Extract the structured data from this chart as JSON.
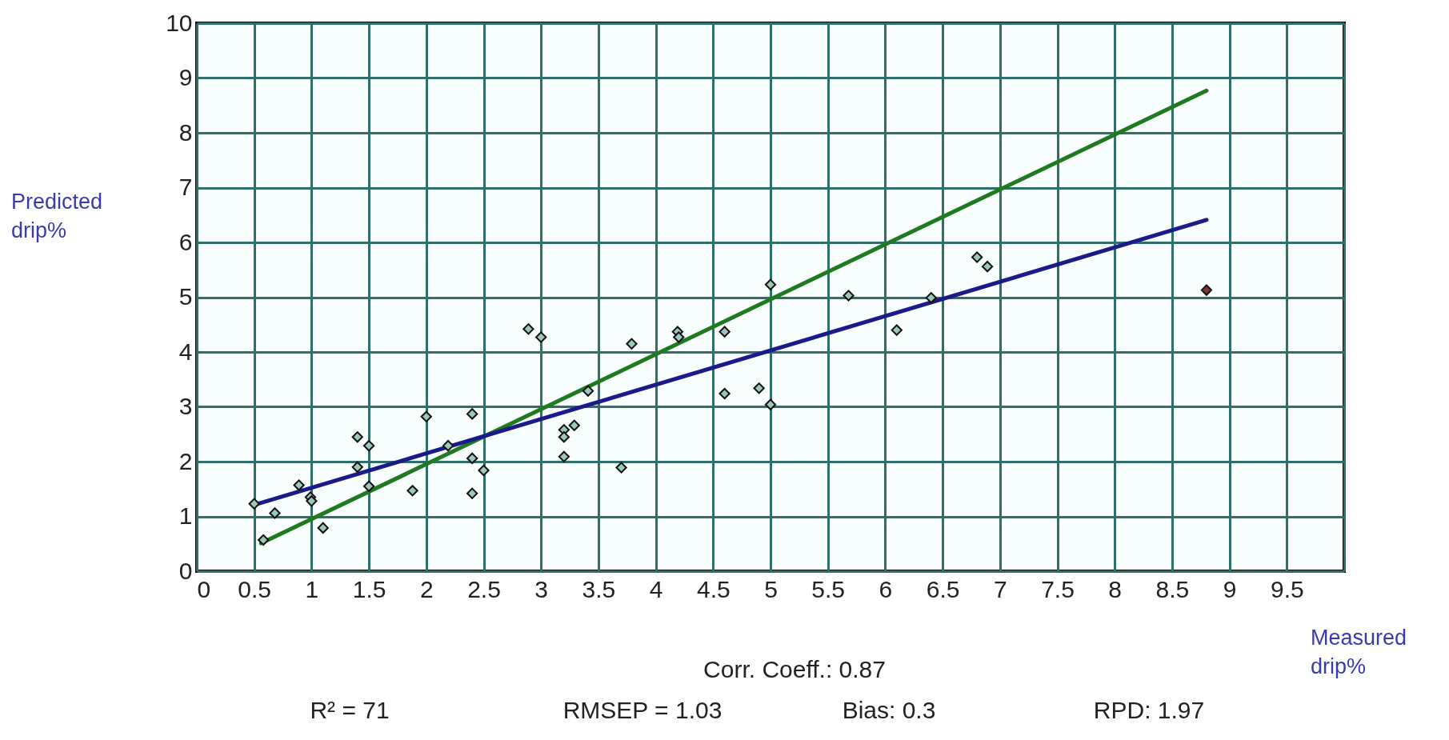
{
  "chart_data": {
    "type": "scatter",
    "xlabel": "Measured drip%",
    "ylabel": "Predicted drip%",
    "xlim": [
      0,
      10
    ],
    "ylim": [
      0,
      10
    ],
    "xticks": [
      0,
      0.5,
      1,
      1.5,
      2,
      2.5,
      3,
      3.5,
      4,
      4.5,
      5,
      5.5,
      6,
      6.5,
      7,
      7.5,
      8,
      8.5,
      9,
      9.5,
      {
        "value": 10,
        "label": null
      }
    ],
    "yticks": [
      0,
      1,
      2,
      3,
      4,
      5,
      6,
      7,
      8,
      9,
      10
    ],
    "grid": true,
    "marker": "diamond",
    "series": [
      {
        "type": "line",
        "line_style": "solid",
        "marker": "none",
        "color": "#1f7a1f",
        "x": [
          0.56,
          8.8
        ],
        "values": [
          0.51,
          8.77
        ]
      },
      {
        "type": "line",
        "line_style": "solid",
        "marker": "none",
        "color": "#1a1a8c",
        "x": [
          0.5,
          8.8
        ],
        "values": [
          1.21,
          6.41
        ]
      },
      {
        "color": "#9cc8b8",
        "x": [
          0.5,
          0.58,
          0.68,
          0.89,
          0.99,
          1.0,
          1.1,
          1.4,
          1.4,
          1.5,
          1.5,
          1.88,
          2.0,
          2.19,
          2.4,
          2.4,
          2.4,
          2.5,
          2.89,
          3.0,
          3.2,
          3.2,
          3.2,
          3.29,
          3.41,
          3.7,
          3.79,
          4.19,
          4.2,
          4.6,
          4.6,
          4.9,
          5.0,
          5.0,
          5.68,
          6.1,
          6.4,
          6.8,
          6.89
        ],
        "values": [
          1.23,
          0.57,
          1.06,
          1.57,
          1.35,
          1.28,
          0.79,
          2.45,
          1.9,
          2.29,
          1.55,
          1.47,
          2.82,
          2.29,
          2.87,
          2.06,
          1.42,
          1.84,
          4.42,
          4.27,
          2.58,
          2.45,
          2.09,
          2.66,
          3.29,
          1.89,
          4.15,
          4.37,
          4.27,
          4.37,
          3.24,
          3.34,
          3.04,
          5.23,
          5.03,
          4.4,
          4.99,
          5.73,
          5.56
        ]
      },
      {
        "color": "#7a3a2a",
        "x": [
          8.8
        ],
        "values": [
          5.13
        ]
      }
    ],
    "annotations": [
      "Corr. Coeff.: 0.87",
      "R² = 71",
      "RMSEP = 1.03",
      "Bias: 0.3",
      "RPD: 1.97"
    ]
  }
}
